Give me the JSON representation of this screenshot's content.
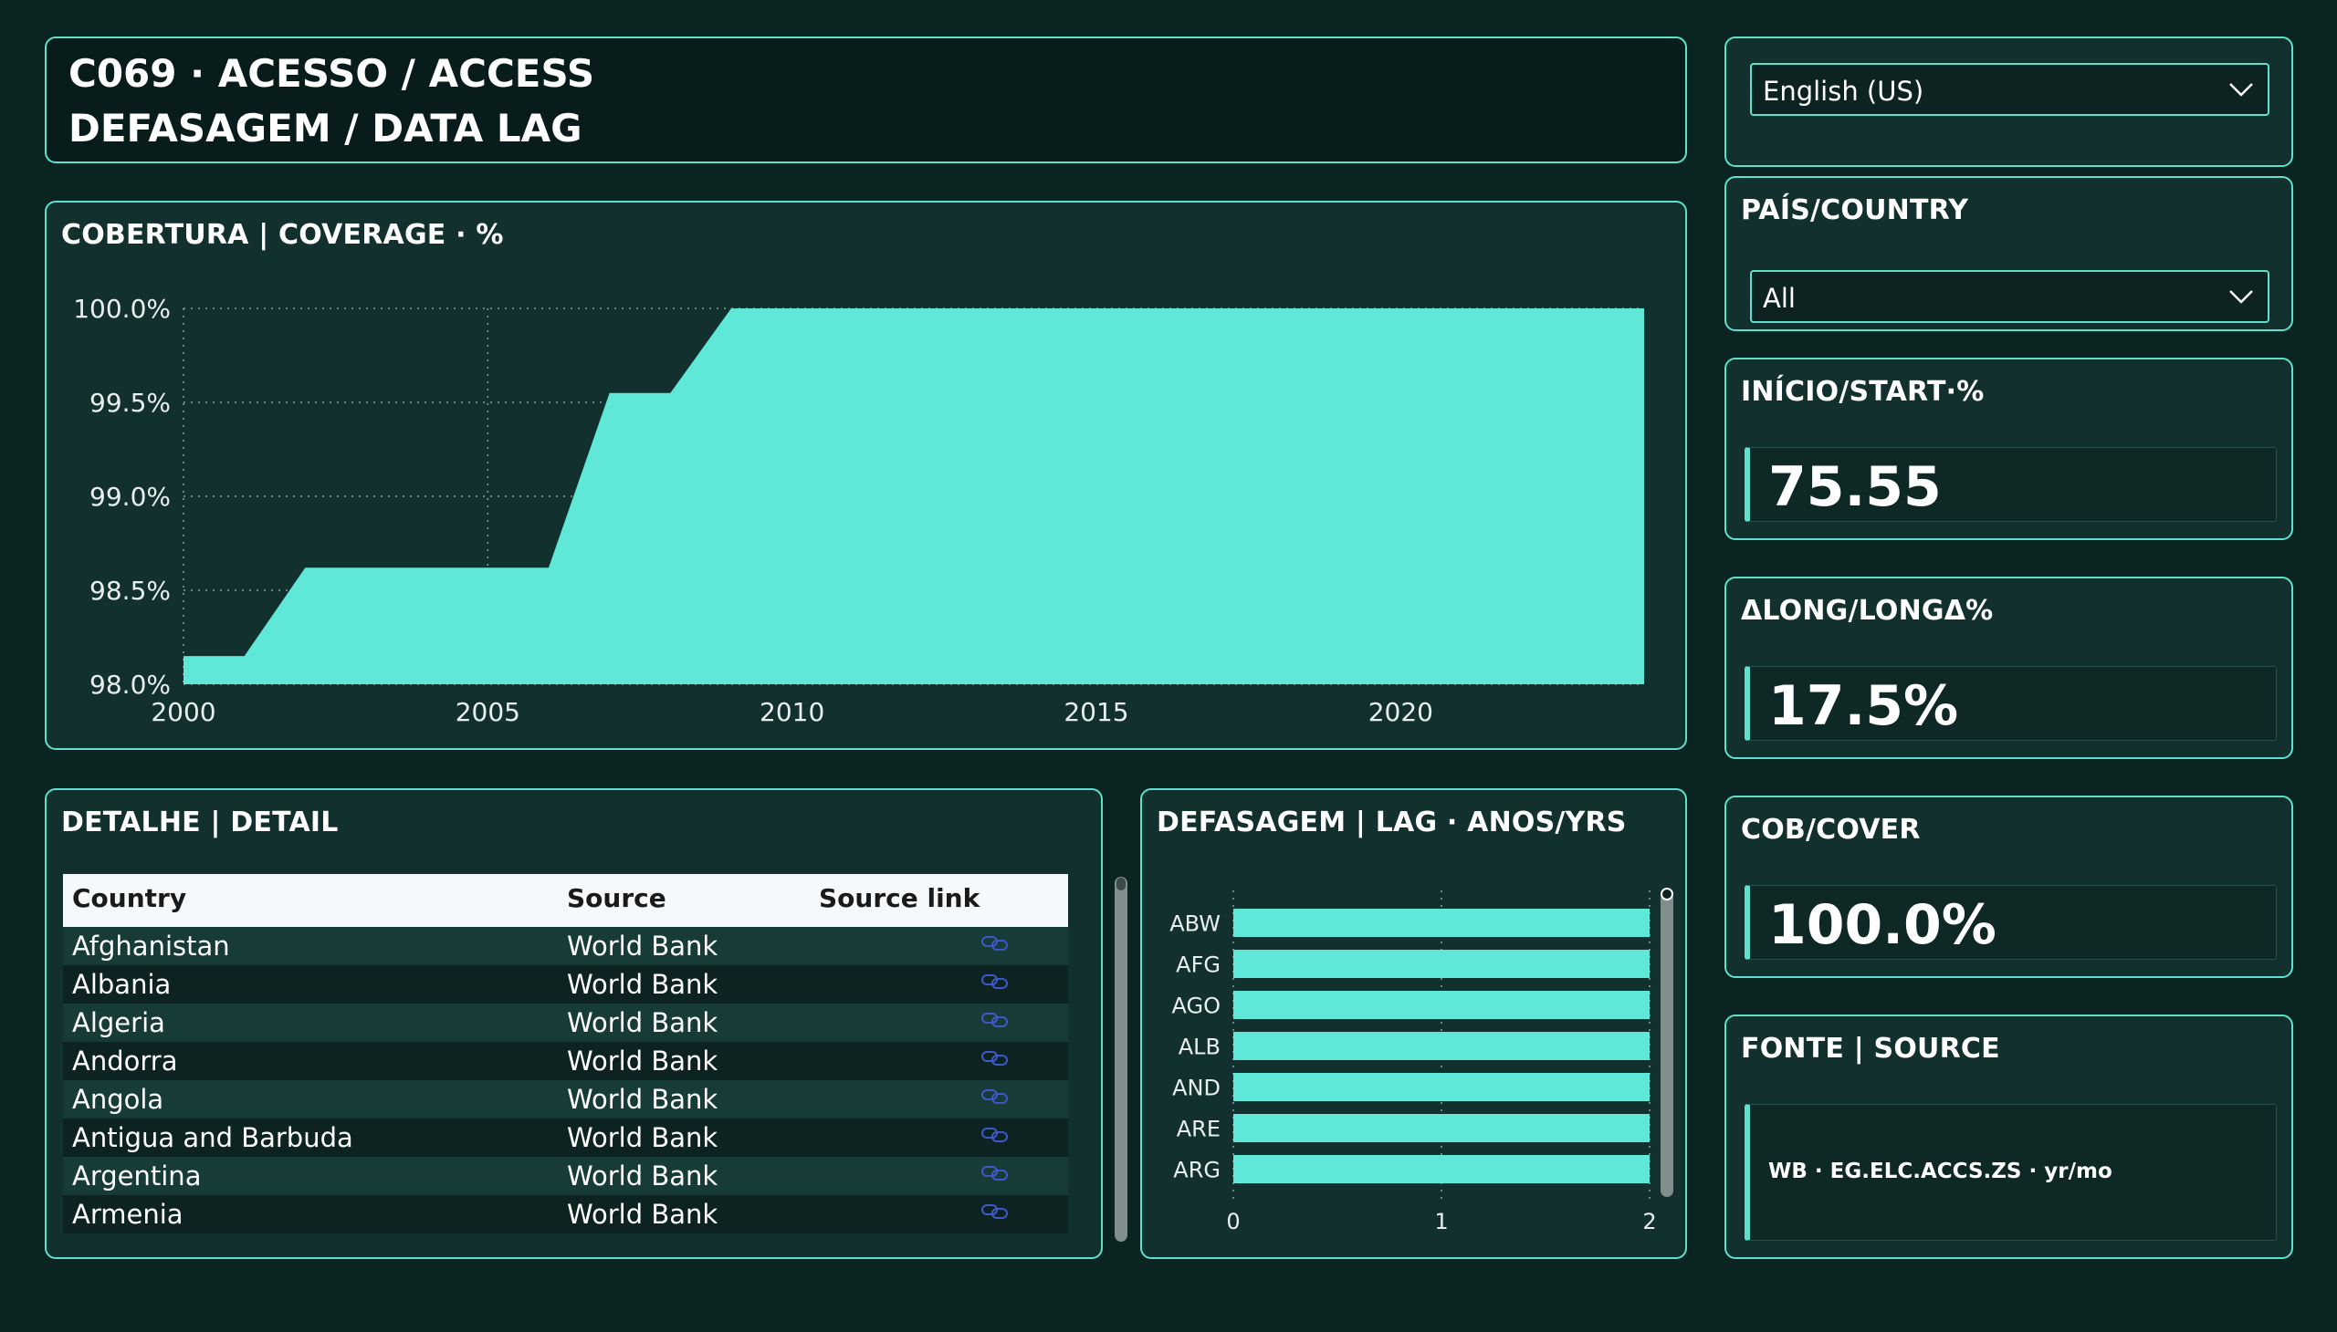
{
  "header": {
    "line1": "C069 · ACESSO / ACCESS",
    "line2": "DEFASAGEM / DATA LAG"
  },
  "coverage_card": {
    "title": "COBERTURA | COVERAGE · %"
  },
  "detail_card": {
    "title": "DETALHE | DETAIL",
    "columns": [
      "Country",
      "Source",
      "Source link"
    ],
    "rows": [
      {
        "country": "Afghanistan",
        "source": "World Bank"
      },
      {
        "country": "Albania",
        "source": "World Bank"
      },
      {
        "country": "Algeria",
        "source": "World Bank"
      },
      {
        "country": "Andorra",
        "source": "World Bank"
      },
      {
        "country": "Angola",
        "source": "World Bank"
      },
      {
        "country": "Antigua and Barbuda",
        "source": "World Bank"
      },
      {
        "country": "Argentina",
        "source": "World Bank"
      },
      {
        "country": "Armenia",
        "source": "World Bank"
      }
    ]
  },
  "lag_card": {
    "title": "DEFASAGEM | LAG · ANOS/YRS"
  },
  "language_selector": {
    "value": "English (US)"
  },
  "country_filter": {
    "title": "PAÍS/COUNTRY",
    "value": "All"
  },
  "kpis": {
    "start": {
      "title": "INÍCIO/START·%",
      "value": "75.55"
    },
    "long_delta": {
      "title": "ΔLONG/LONGΔ%",
      "value": "17.5%"
    },
    "cover": {
      "title": "COB/COVER",
      "value": "100.0%"
    }
  },
  "source_card": {
    "title": "FONTE | SOURCE",
    "value": "WB · EG.ELC.ACCS.ZS · yr/mo"
  },
  "colors": {
    "accent": "#5fe0cf",
    "background": "#0a2422",
    "card": "#12312e"
  },
  "icons": {
    "dropdown": "chevron-down-icon",
    "link": "link-icon"
  },
  "chart_data": [
    {
      "type": "area",
      "x": [
        2000,
        2001,
        2002,
        2003,
        2004,
        2005,
        2006,
        2007,
        2008,
        2009,
        2010,
        2011,
        2012,
        2013,
        2014,
        2015,
        2016,
        2017,
        2018,
        2019,
        2020,
        2021,
        2022,
        2023,
        2024
      ],
      "values": [
        98.15,
        98.15,
        98.62,
        98.62,
        98.62,
        98.62,
        98.62,
        99.55,
        99.55,
        100.0,
        100.0,
        100.0,
        100.0,
        100.0,
        100.0,
        100.0,
        100.0,
        100.0,
        100.0,
        100.0,
        100.0,
        100.0,
        100.0,
        100.0,
        100.0
      ],
      "x_ticks": [
        2000,
        2005,
        2010,
        2015,
        2020
      ],
      "y_ticks": [
        "98.0%",
        "98.5%",
        "99.0%",
        "99.5%",
        "100.0%"
      ],
      "ylim": [
        98.0,
        100.0
      ],
      "xlim": [
        2000,
        2024
      ],
      "grid": true
    },
    {
      "type": "bar",
      "orientation": "horizontal",
      "categories": [
        "ABW",
        "AFG",
        "AGO",
        "ALB",
        "AND",
        "ARE",
        "ARG"
      ],
      "values": [
        2,
        2,
        2,
        2,
        2,
        2,
        2
      ],
      "x_ticks": [
        "0",
        "1",
        "2"
      ],
      "xlim": [
        0,
        2
      ],
      "grid": true
    }
  ]
}
